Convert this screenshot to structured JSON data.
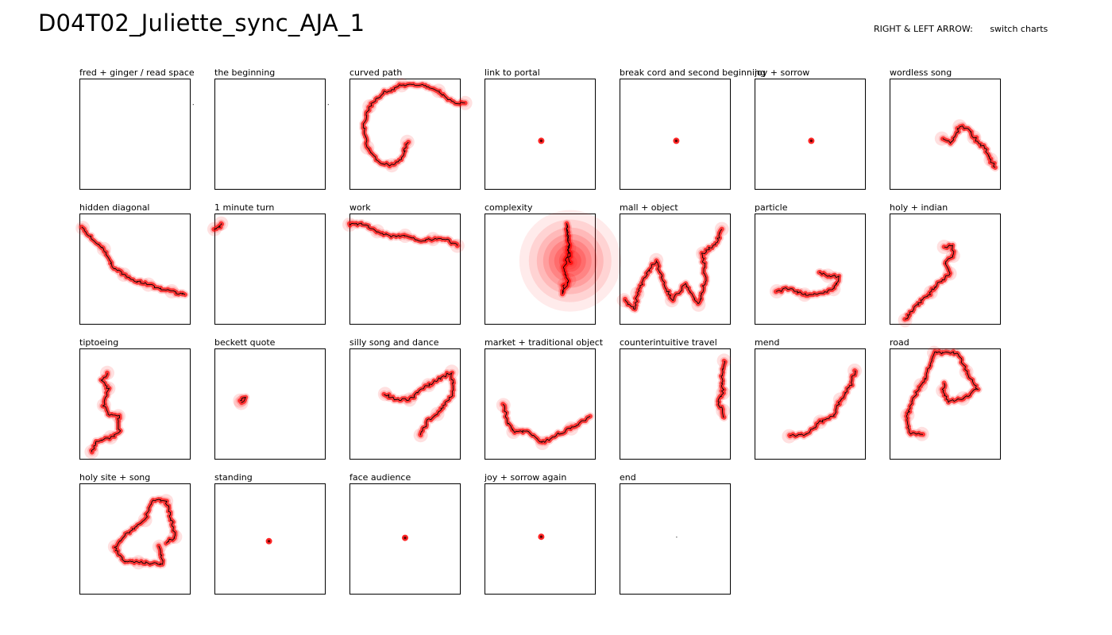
{
  "title": "D04T02_Juliette_sync_AJA_1",
  "hint": {
    "key": "RIGHT & LEFT ARROW:",
    "action": "switch charts"
  },
  "colors": {
    "heat": "#ff0000",
    "path": "#000000",
    "frame": "#000000"
  },
  "charts": [
    {
      "label": "fred + ginger / read space",
      "kind": "stray",
      "pts": [
        [
          1.02,
          0.23
        ]
      ]
    },
    {
      "label": "the beginning",
      "kind": "stray",
      "pts": [
        [
          1.02,
          0.23
        ]
      ]
    },
    {
      "label": "curved path",
      "kind": "path",
      "pts": [
        [
          0.52,
          0.57
        ],
        [
          0.47,
          0.72
        ],
        [
          0.38,
          0.78
        ],
        [
          0.27,
          0.76
        ],
        [
          0.16,
          0.62
        ],
        [
          0.13,
          0.42
        ],
        [
          0.18,
          0.25
        ],
        [
          0.32,
          0.12
        ],
        [
          0.47,
          0.06
        ],
        [
          0.62,
          0.05
        ],
        [
          0.8,
          0.11
        ],
        [
          0.94,
          0.22
        ],
        [
          1.04,
          0.22
        ]
      ]
    },
    {
      "label": "link to portal",
      "kind": "dot",
      "pts": [
        [
          0.51,
          0.56
        ]
      ]
    },
    {
      "label": "break cord and second beginning",
      "kind": "dot",
      "pts": [
        [
          0.51,
          0.56
        ]
      ]
    },
    {
      "label": "joy + sorrow",
      "kind": "dot",
      "pts": [
        [
          0.51,
          0.56
        ]
      ]
    },
    {
      "label": "wordless song",
      "kind": "path",
      "pts": [
        [
          0.47,
          0.54
        ],
        [
          0.55,
          0.58
        ],
        [
          0.63,
          0.43
        ],
        [
          0.71,
          0.46
        ],
        [
          0.76,
          0.53
        ],
        [
          0.85,
          0.62
        ],
        [
          0.91,
          0.73
        ],
        [
          0.95,
          0.8
        ]
      ]
    },
    {
      "label": "hidden diagonal",
      "kind": "path",
      "pts": [
        [
          0.03,
          0.13
        ],
        [
          0.13,
          0.24
        ],
        [
          0.22,
          0.32
        ],
        [
          0.3,
          0.48
        ],
        [
          0.4,
          0.55
        ],
        [
          0.51,
          0.61
        ],
        [
          0.62,
          0.64
        ],
        [
          0.73,
          0.68
        ],
        [
          0.83,
          0.7
        ],
        [
          0.95,
          0.73
        ]
      ]
    },
    {
      "label": "1 minute turn",
      "kind": "path",
      "pts": [
        [
          0.0,
          0.14
        ],
        [
          0.04,
          0.12
        ],
        [
          0.06,
          0.09
        ]
      ]
    },
    {
      "label": "work",
      "kind": "path",
      "pts": [
        [
          0.0,
          0.1
        ],
        [
          0.12,
          0.09
        ],
        [
          0.25,
          0.16
        ],
        [
          0.38,
          0.21
        ],
        [
          0.5,
          0.2
        ],
        [
          0.63,
          0.24
        ],
        [
          0.75,
          0.23
        ],
        [
          0.88,
          0.24
        ],
        [
          0.97,
          0.29
        ]
      ]
    },
    {
      "label": "complexity",
      "kind": "blob",
      "pts": [
        [
          0.77,
          0.44
        ],
        [
          0.74,
          0.1
        ],
        [
          0.76,
          0.31
        ],
        [
          0.71,
          0.52
        ],
        [
          0.76,
          0.6
        ],
        [
          0.7,
          0.72
        ],
        [
          0.72,
          0.64
        ]
      ]
    },
    {
      "label": "mall + object",
      "kind": "path",
      "pts": [
        [
          0.04,
          0.78
        ],
        [
          0.14,
          0.87
        ],
        [
          0.16,
          0.72
        ],
        [
          0.23,
          0.56
        ],
        [
          0.33,
          0.42
        ],
        [
          0.38,
          0.58
        ],
        [
          0.47,
          0.78
        ],
        [
          0.59,
          0.64
        ],
        [
          0.71,
          0.82
        ],
        [
          0.77,
          0.6
        ],
        [
          0.75,
          0.36
        ],
        [
          0.86,
          0.28
        ],
        [
          0.92,
          0.14
        ]
      ]
    },
    {
      "label": "particle",
      "kind": "path",
      "pts": [
        [
          0.2,
          0.7
        ],
        [
          0.31,
          0.67
        ],
        [
          0.45,
          0.73
        ],
        [
          0.6,
          0.72
        ],
        [
          0.71,
          0.68
        ],
        [
          0.76,
          0.57
        ],
        [
          0.66,
          0.56
        ],
        [
          0.58,
          0.53
        ]
      ]
    },
    {
      "label": "holy + indian",
      "kind": "path",
      "pts": [
        [
          0.14,
          0.96
        ],
        [
          0.24,
          0.83
        ],
        [
          0.37,
          0.71
        ],
        [
          0.46,
          0.61
        ],
        [
          0.54,
          0.54
        ],
        [
          0.5,
          0.44
        ],
        [
          0.57,
          0.38
        ],
        [
          0.56,
          0.29
        ],
        [
          0.49,
          0.3
        ]
      ]
    },
    {
      "label": "tiptoeing",
      "kind": "path",
      "pts": [
        [
          0.11,
          0.93
        ],
        [
          0.16,
          0.83
        ],
        [
          0.28,
          0.8
        ],
        [
          0.36,
          0.76
        ],
        [
          0.35,
          0.61
        ],
        [
          0.26,
          0.59
        ],
        [
          0.22,
          0.51
        ],
        [
          0.24,
          0.44
        ],
        [
          0.26,
          0.36
        ],
        [
          0.2,
          0.29
        ],
        [
          0.25,
          0.22
        ]
      ]
    },
    {
      "label": "beckett quote",
      "kind": "path",
      "pts": [
        [
          0.24,
          0.49
        ],
        [
          0.27,
          0.45
        ],
        [
          0.23,
          0.47
        ]
      ]
    },
    {
      "label": "silly song and dance",
      "kind": "path",
      "pts": [
        [
          0.32,
          0.41
        ],
        [
          0.42,
          0.46
        ],
        [
          0.54,
          0.46
        ],
        [
          0.62,
          0.39
        ],
        [
          0.71,
          0.33
        ],
        [
          0.83,
          0.26
        ],
        [
          0.92,
          0.21
        ],
        [
          0.93,
          0.41
        ],
        [
          0.79,
          0.59
        ],
        [
          0.7,
          0.65
        ],
        [
          0.64,
          0.78
        ]
      ]
    },
    {
      "label": "market + traditional object",
      "kind": "path",
      "pts": [
        [
          0.17,
          0.51
        ],
        [
          0.2,
          0.63
        ],
        [
          0.26,
          0.75
        ],
        [
          0.4,
          0.75
        ],
        [
          0.52,
          0.85
        ],
        [
          0.64,
          0.78
        ],
        [
          0.78,
          0.72
        ],
        [
          0.95,
          0.61
        ]
      ]
    },
    {
      "label": "counterintuitive travel",
      "kind": "path",
      "pts": [
        [
          0.94,
          0.11
        ],
        [
          0.92,
          0.24
        ],
        [
          0.93,
          0.4
        ],
        [
          0.88,
          0.47
        ],
        [
          0.93,
          0.56
        ],
        [
          0.94,
          0.62
        ]
      ]
    },
    {
      "label": "mend",
      "kind": "path",
      "pts": [
        [
          0.31,
          0.79
        ],
        [
          0.47,
          0.77
        ],
        [
          0.59,
          0.66
        ],
        [
          0.72,
          0.6
        ],
        [
          0.77,
          0.46
        ],
        [
          0.87,
          0.33
        ],
        [
          0.9,
          0.2
        ]
      ]
    },
    {
      "label": "road",
      "kind": "path",
      "pts": [
        [
          0.29,
          0.77
        ],
        [
          0.17,
          0.76
        ],
        [
          0.16,
          0.6
        ],
        [
          0.22,
          0.44
        ],
        [
          0.28,
          0.33
        ],
        [
          0.33,
          0.24
        ],
        [
          0.4,
          0.04
        ],
        [
          0.62,
          0.04
        ],
        [
          0.69,
          0.21
        ],
        [
          0.79,
          0.36
        ],
        [
          0.66,
          0.45
        ],
        [
          0.52,
          0.48
        ],
        [
          0.48,
          0.38
        ],
        [
          0.49,
          0.31
        ]
      ]
    },
    {
      "label": "holy site + song",
      "kind": "path",
      "pts": [
        [
          0.72,
          0.57
        ],
        [
          0.75,
          0.73
        ],
        [
          0.53,
          0.71
        ],
        [
          0.4,
          0.7
        ],
        [
          0.32,
          0.57
        ],
        [
          0.43,
          0.45
        ],
        [
          0.59,
          0.33
        ],
        [
          0.66,
          0.15
        ],
        [
          0.78,
          0.16
        ],
        [
          0.83,
          0.34
        ],
        [
          0.86,
          0.48
        ],
        [
          0.78,
          0.54
        ]
      ]
    },
    {
      "label": "standing",
      "kind": "dot",
      "pts": [
        [
          0.49,
          0.52
        ]
      ]
    },
    {
      "label": "face audience",
      "kind": "dot",
      "pts": [
        [
          0.5,
          0.49
        ]
      ]
    },
    {
      "label": "joy + sorrow again",
      "kind": "dot",
      "pts": [
        [
          0.51,
          0.48
        ]
      ]
    },
    {
      "label": "end",
      "kind": "stray",
      "pts": [
        [
          0.51,
          0.48
        ]
      ]
    }
  ]
}
